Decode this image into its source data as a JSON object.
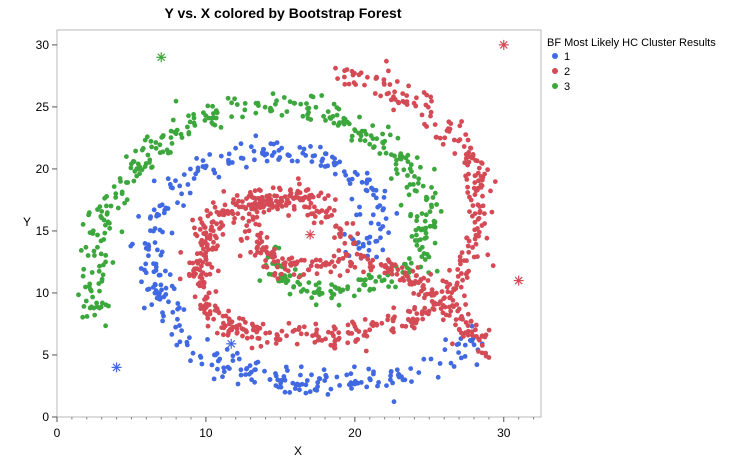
{
  "chart_data": {
    "type": "scatter",
    "title": "Y vs. X colored by Bootstrap Forest",
    "xlabel": "X",
    "ylabel": "Y",
    "xlim": [
      0,
      32.5
    ],
    "ylim": [
      0,
      31.2
    ],
    "x_ticks": [
      0,
      10,
      20,
      30
    ],
    "y_ticks": [
      0,
      5,
      10,
      15,
      20,
      25,
      30
    ],
    "grid": false,
    "legend": {
      "title": "BF Most Likely HC Cluster Results",
      "placement": "right"
    },
    "series": [
      {
        "name": "1",
        "color": "#4169e1",
        "shape": "spiral-arm",
        "path": [
          [
            28.5,
            6.5
          ],
          [
            27,
            5.3
          ],
          [
            25,
            4.2
          ],
          [
            23,
            3.5
          ],
          [
            20,
            2.8
          ],
          [
            17,
            2.6
          ],
          [
            14,
            3.2
          ],
          [
            11,
            4.3
          ],
          [
            9,
            6
          ],
          [
            7.5,
            8.5
          ],
          [
            6.6,
            11
          ],
          [
            6.3,
            13.5
          ],
          [
            6.7,
            16.2
          ],
          [
            8,
            18.5
          ],
          [
            10,
            20
          ],
          [
            12.5,
            21.2
          ],
          [
            15,
            21.5
          ],
          [
            17.5,
            21
          ],
          [
            19.5,
            20
          ],
          [
            21,
            18.5
          ],
          [
            21.6,
            16.5
          ],
          [
            21.3,
            14.8
          ],
          [
            20.5,
            13.7
          ],
          [
            19.5,
            13.3
          ]
        ],
        "count": 380,
        "spread": 0.55,
        "outliers": [
          [
            4,
            4
          ],
          [
            11.7,
            5.9
          ]
        ]
      },
      {
        "name": "2",
        "color": "#d44a55",
        "shape": "spiral-arm",
        "path": [
          [
            28.5,
            4.8
          ],
          [
            27.5,
            7.5
          ],
          [
            26,
            9.5
          ],
          [
            24,
            11
          ],
          [
            21,
            12.5
          ],
          [
            18,
            12.6
          ],
          [
            15.5,
            12
          ],
          [
            13.8,
            13.2
          ],
          [
            12.8,
            15.5
          ],
          [
            13.5,
            17.5
          ],
          [
            16,
            18
          ],
          [
            17.8,
            16.8
          ],
          [
            18.5,
            15.5
          ],
          [
            19.5,
            14.5
          ]
        ],
        "count": 0,
        "spread": 0.5,
        "outliers": [
          [
            30,
            30
          ],
          [
            17,
            14.7
          ],
          [
            31,
            11
          ]
        ]
      },
      {
        "name": "3",
        "color": "#3ca73c",
        "shape": "spiral-arm",
        "path": [
          [
            2.5,
            8.5
          ],
          [
            2.6,
            12
          ],
          [
            3.2,
            16.5
          ],
          [
            4.8,
            19.5
          ],
          [
            7,
            22.2
          ],
          [
            9.5,
            24
          ],
          [
            12,
            25
          ],
          [
            15,
            25.1
          ],
          [
            18,
            24.5
          ],
          [
            20.5,
            23
          ],
          [
            22.8,
            21
          ],
          [
            24.4,
            18.5
          ],
          [
            24.8,
            15.5
          ],
          [
            24.5,
            13
          ],
          [
            23,
            11.5
          ],
          [
            21,
            10.5
          ],
          [
            18.5,
            10
          ],
          [
            16,
            10.5
          ],
          [
            14.5,
            12
          ],
          [
            14.5,
            13.6
          ]
        ],
        "count": 430,
        "spread": 0.55,
        "outliers": [
          [
            7,
            29
          ]
        ]
      }
    ],
    "series_2_segments": [
      {
        "path": [
          [
            14,
            6.5
          ],
          [
            17,
            6.4
          ],
          [
            20,
            6.8
          ],
          [
            23,
            7.5
          ],
          [
            25.5,
            9
          ],
          [
            27.2,
            11.5
          ],
          [
            28.3,
            14.5
          ],
          [
            28.5,
            17.5
          ],
          [
            27.8,
            20.5
          ],
          [
            26.3,
            23
          ],
          [
            24,
            25.5
          ],
          [
            21.5,
            27
          ],
          [
            18.8,
            28
          ]
        ],
        "count": 300,
        "spread": 0.5
      },
      {
        "path": [
          [
            14,
            6.5
          ],
          [
            11.5,
            7.2
          ],
          [
            10,
            8.8
          ],
          [
            9.6,
            11
          ],
          [
            9.8,
            13.5
          ],
          [
            10.5,
            15.8
          ],
          [
            12,
            17.2
          ],
          [
            14,
            17.8
          ],
          [
            16,
            17.5
          ]
        ],
        "count": 250,
        "spread": 0.5
      }
    ]
  }
}
